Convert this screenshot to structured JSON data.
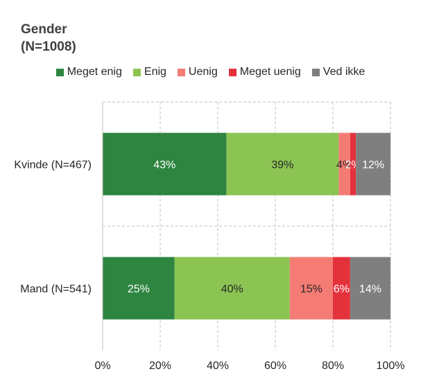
{
  "chart_data": {
    "type": "bar",
    "orientation": "horizontal",
    "stacked": true,
    "title": "Gender\n(N=1008)",
    "categories": [
      "Kvinde (N=467)",
      "Mand (N=541)"
    ],
    "series": [
      {
        "name": "Meget enig",
        "color": "#2e8540",
        "values": [
          43,
          25
        ],
        "labels": [
          "43%",
          "25%"
        ]
      },
      {
        "name": "Enig",
        "color": "#8bc453",
        "values": [
          39,
          40
        ],
        "labels": [
          "39%",
          "40%"
        ]
      },
      {
        "name": "Uenig",
        "color": "#f47c74",
        "values": [
          4,
          15
        ],
        "labels": [
          "4%",
          "15%"
        ]
      },
      {
        "name": "Meget uenig",
        "color": "#e4323d",
        "values": [
          2,
          6
        ],
        "labels": [
          "2%",
          "6%"
        ]
      },
      {
        "name": "Ved ikke",
        "color": "#7f7f7f",
        "values": [
          12,
          14
        ],
        "labels": [
          "12%",
          "14%"
        ]
      }
    ],
    "xlim": [
      0,
      100
    ],
    "x_ticks": [
      "0%",
      "20%",
      "40%",
      "60%",
      "80%",
      "100%"
    ],
    "legend_position": "top",
    "grid": true,
    "label_colors": {
      "Meget enig": "#ffffff",
      "Enig": "#262626",
      "Uenig": "#262626",
      "Meget uenig": "#ffffff",
      "Ved ikke": "#ffffff"
    }
  }
}
